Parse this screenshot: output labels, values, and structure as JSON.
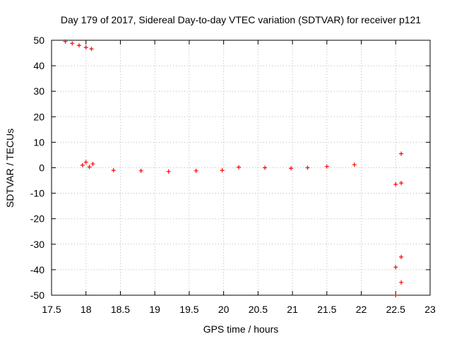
{
  "chart_data": {
    "type": "scatter",
    "title": "Day 179 of 2017, Sidereal Day-to-day VTEC variation (SDTVAR) for receiver p121",
    "xlabel": "GPS time / hours",
    "ylabel": "SDTVAR / TECUs",
    "xlim": [
      17.5,
      23
    ],
    "ylim": [
      -50,
      50
    ],
    "xticks": [
      "17.5",
      "18",
      "18.5",
      "19",
      "19.5",
      "20",
      "20.5",
      "21",
      "21.5",
      "22",
      "22.5",
      "23"
    ],
    "yticks": [
      "50",
      "40",
      "30",
      "20",
      "10",
      "0",
      "-10",
      "-20",
      "-30",
      "-40",
      "-50"
    ],
    "grid": true,
    "marker": "plus",
    "color": "#ff0000",
    "series": [
      {
        "values": [
          [
            17.7,
            49.5
          ],
          [
            17.8,
            48.8
          ],
          [
            17.9,
            48.0
          ],
          [
            18.0,
            47.2
          ],
          [
            18.08,
            46.6
          ],
          [
            17.95,
            1.0
          ],
          [
            18.0,
            2.2
          ],
          [
            18.05,
            0.3
          ],
          [
            18.1,
            1.5
          ],
          [
            18.4,
            -1.0
          ],
          [
            18.8,
            -1.2
          ],
          [
            19.2,
            -1.5
          ],
          [
            19.6,
            -1.2
          ],
          [
            19.98,
            -1.0
          ],
          [
            20.22,
            0.2
          ],
          [
            20.6,
            0.0
          ],
          [
            20.98,
            -0.2
          ],
          [
            21.22,
            0.0
          ],
          [
            21.5,
            0.5
          ],
          [
            21.9,
            1.2
          ],
          [
            22.5,
            -6.5
          ],
          [
            22.58,
            -6.0
          ],
          [
            22.58,
            5.5
          ],
          [
            22.5,
            -39.0
          ],
          [
            22.58,
            -35.0
          ],
          [
            22.5,
            -50.0
          ],
          [
            22.58,
            -45.0
          ]
        ]
      }
    ]
  }
}
